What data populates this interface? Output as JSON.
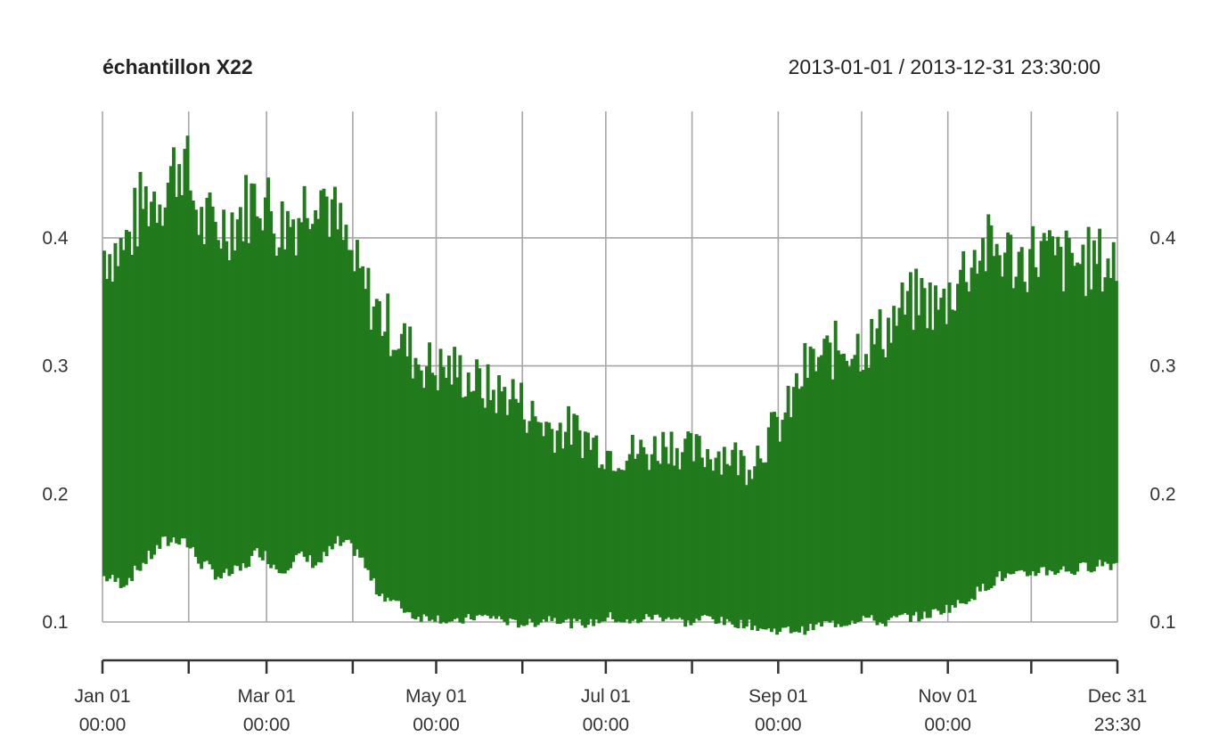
{
  "chart_data": {
    "type": "bar",
    "title": "échantillon X22",
    "subtitle": "2013-01-01 / 2013-12-31 23:30:00",
    "x_range": [
      "2013-01-01 00:00",
      "2013-12-31 23:30"
    ],
    "ylim": [
      0.07,
      0.5
    ],
    "y_ticks": [
      "0.1",
      "0.2",
      "0.3",
      "0.4"
    ],
    "y_tick_values": [
      0.1,
      0.2,
      0.3,
      0.4
    ],
    "grid": true,
    "series_color": "#217a1b",
    "grid_color": "#a6a6a6",
    "x_grid_dates": [
      "2013-01-01",
      "2013-02-01",
      "2013-03-01",
      "2013-04-01",
      "2013-05-01",
      "2013-06-01",
      "2013-07-01",
      "2013-08-01",
      "2013-09-01",
      "2013-10-01",
      "2013-11-01",
      "2013-12-01",
      "2013-12-31T23:30"
    ],
    "x_tick_labels": [
      {
        "date": "2013-01-01",
        "line1": "Jan 01",
        "line2": "00:00"
      },
      {
        "date": "2013-03-01",
        "line1": "Mar 01",
        "line2": "00:00"
      },
      {
        "date": "2013-05-01",
        "line1": "May 01",
        "line2": "00:00"
      },
      {
        "date": "2013-07-01",
        "line1": "Jul 01",
        "line2": "00:00"
      },
      {
        "date": "2013-09-01",
        "line1": "Sep 01",
        "line2": "00:00"
      },
      {
        "date": "2013-11-01",
        "line1": "Nov 01",
        "line2": "00:00"
      },
      {
        "date": "2013-12-31T23:30",
        "line1": "Dec 31",
        "line2": "23:30"
      }
    ],
    "weekly_max": [
      0.42,
      0.42,
      0.46,
      0.47,
      0.5,
      0.44,
      0.44,
      0.45,
      0.47,
      0.44,
      0.45,
      0.48,
      0.44,
      0.4,
      0.37,
      0.35,
      0.33,
      0.32,
      0.32,
      0.31,
      0.3,
      0.3,
      0.28,
      0.27,
      0.27,
      0.26,
      0.25,
      0.25,
      0.25,
      0.26,
      0.25,
      0.25,
      0.25,
      0.24,
      0.26,
      0.28,
      0.32,
      0.33,
      0.34,
      0.34,
      0.35,
      0.37,
      0.38,
      0.37,
      0.4,
      0.42,
      0.42,
      0.41,
      0.42,
      0.41,
      0.41,
      0.41,
      0.41
    ],
    "weekly_min": [
      0.13,
      0.125,
      0.14,
      0.155,
      0.16,
      0.14,
      0.13,
      0.135,
      0.15,
      0.135,
      0.145,
      0.14,
      0.155,
      0.15,
      0.12,
      0.11,
      0.1,
      0.1,
      0.095,
      0.1,
      0.1,
      0.095,
      0.095,
      0.1,
      0.095,
      0.095,
      0.1,
      0.095,
      0.1,
      0.1,
      0.095,
      0.1,
      0.095,
      0.095,
      0.09,
      0.09,
      0.09,
      0.095,
      0.095,
      0.1,
      0.095,
      0.1,
      0.1,
      0.105,
      0.11,
      0.12,
      0.13,
      0.13,
      0.135,
      0.135,
      0.135,
      0.14,
      0.14
    ]
  }
}
